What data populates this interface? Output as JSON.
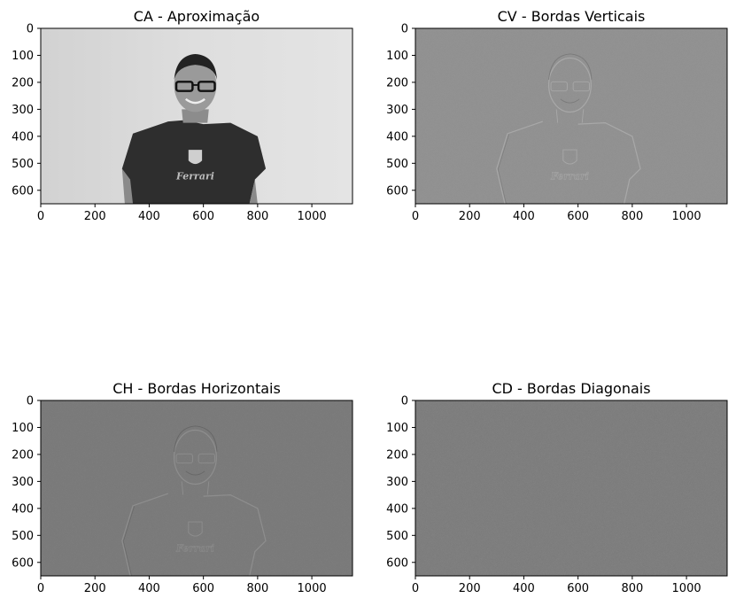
{
  "chart_data": [
    {
      "type": "image",
      "title": "CA - Aproximação",
      "tone": "approximation",
      "base_color": "#d8d8d8",
      "xlim": [
        0,
        1150
      ],
      "ylim": [
        0,
        650
      ],
      "xticks": [
        0,
        200,
        400,
        600,
        800,
        1000
      ],
      "yticks": [
        0,
        100,
        200,
        300,
        400,
        500,
        600
      ],
      "shirt_text": "Ferrari"
    },
    {
      "type": "image",
      "title": "CV - Bordas Verticais",
      "tone": "vertical-edges",
      "base_color": "#8f8f8f",
      "xlim": [
        0,
        1150
      ],
      "ylim": [
        0,
        650
      ],
      "xticks": [
        0,
        200,
        400,
        600,
        800,
        1000
      ],
      "yticks": [
        0,
        100,
        200,
        300,
        400,
        500,
        600
      ],
      "shirt_text": "Ferrari"
    },
    {
      "type": "image",
      "title": "CH - Bordas Horizontais",
      "tone": "horizontal-edges",
      "base_color": "#777777",
      "xlim": [
        0,
        1150
      ],
      "ylim": [
        0,
        650
      ],
      "xticks": [
        0,
        200,
        400,
        600,
        800,
        1000
      ],
      "yticks": [
        0,
        100,
        200,
        300,
        400,
        500,
        600
      ],
      "shirt_text": "Ferrari"
    },
    {
      "type": "image",
      "title": "CD - Bordas Diagonais",
      "tone": "diagonal-edges",
      "base_color": "#797979",
      "xlim": [
        0,
        1150
      ],
      "ylim": [
        0,
        650
      ],
      "xticks": [
        0,
        200,
        400,
        600,
        800,
        1000
      ],
      "yticks": [
        0,
        100,
        200,
        300,
        400,
        500,
        600
      ],
      "shirt_text": ""
    }
  ]
}
